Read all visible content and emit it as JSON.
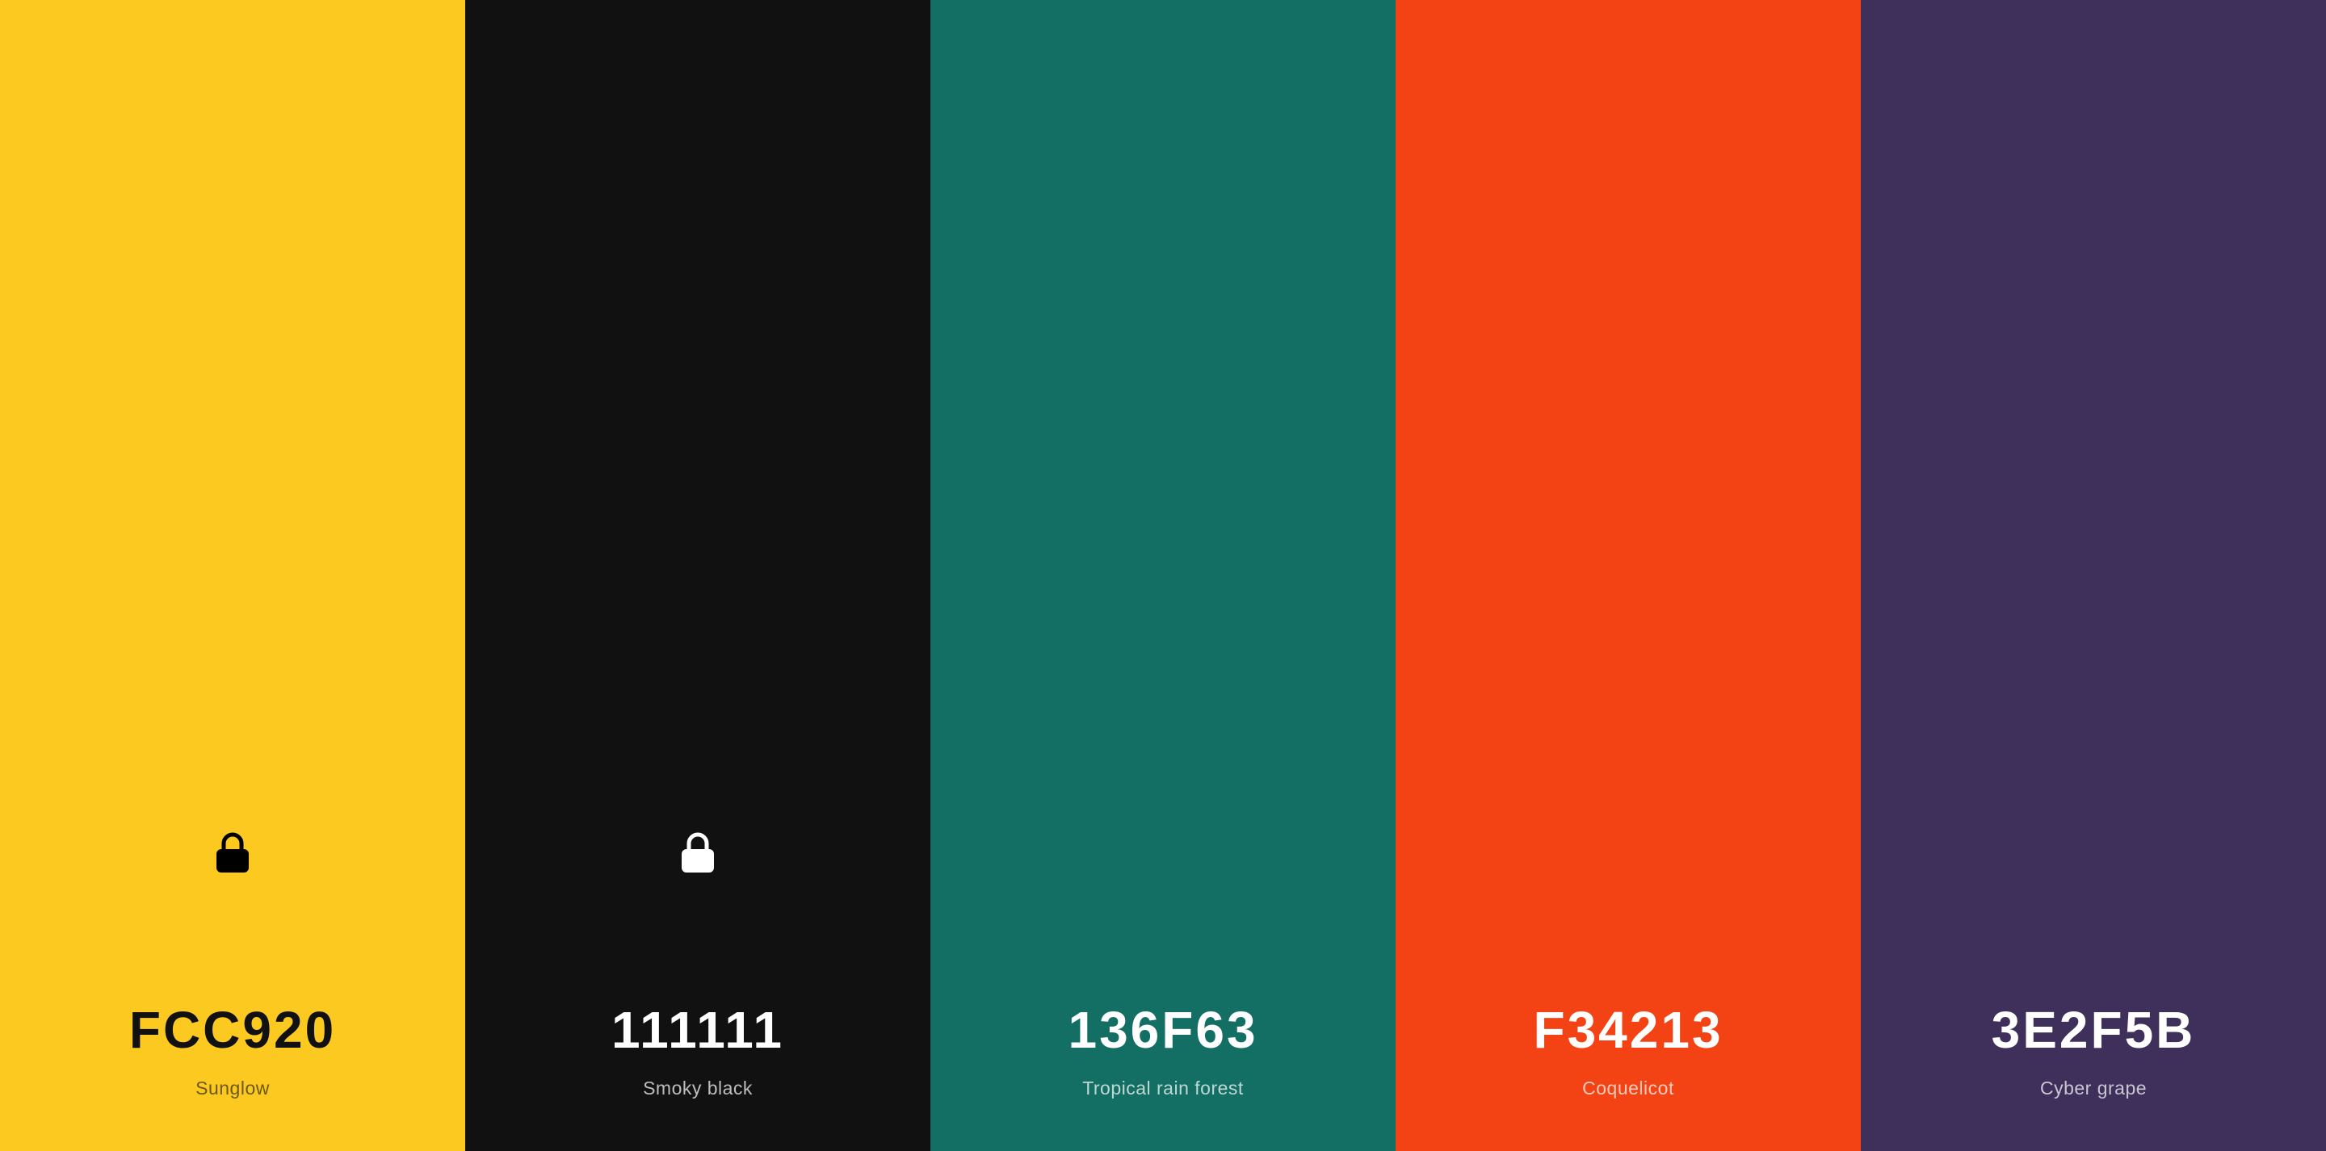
{
  "palette": [
    {
      "hex": "FCC920",
      "name": "Sunglow",
      "color": "#FCC920",
      "locked": true,
      "text_tone": "dark"
    },
    {
      "hex": "111111",
      "name": "Smoky black",
      "color": "#111111",
      "locked": true,
      "text_tone": "light"
    },
    {
      "hex": "136F63",
      "name": "Tropical rain forest",
      "color": "#136F63",
      "locked": false,
      "text_tone": "light"
    },
    {
      "hex": "F34213",
      "name": "Coquelicot",
      "color": "#F34213",
      "locked": false,
      "text_tone": "light"
    },
    {
      "hex": "3E2F5B",
      "name": "Cyber grape",
      "color": "#3E2F5B",
      "locked": false,
      "text_tone": "light"
    }
  ],
  "icons": {
    "lock": "lock-icon"
  }
}
